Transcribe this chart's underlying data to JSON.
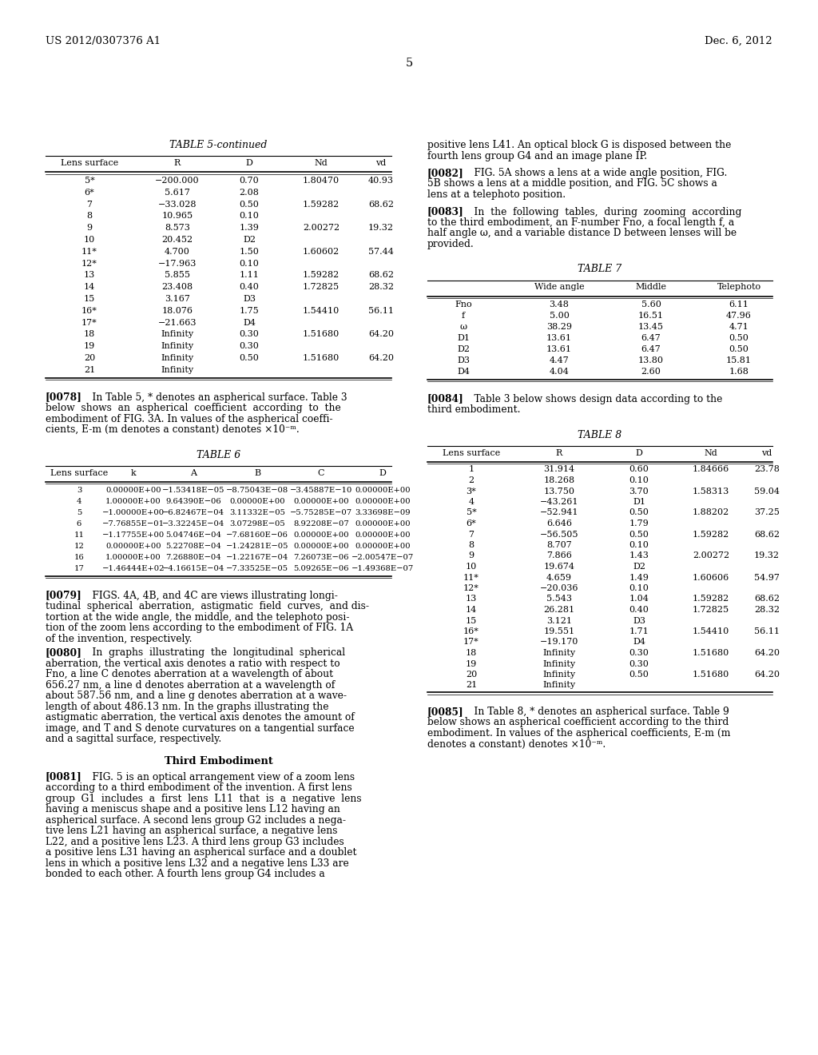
{
  "header_left": "US 2012/0307376 A1",
  "header_right": "Dec. 6, 2012",
  "page_number": "5",
  "background_color": "#ffffff",
  "text_color": "#000000",
  "table5c_title": "TABLE 5-continued",
  "table5c_rows": [
    [
      "5*",
      "−200.000",
      "0.70",
      "1.80470",
      "40.93"
    ],
    [
      "6*",
      "5.617",
      "2.08",
      "",
      ""
    ],
    [
      "7",
      "−33.028",
      "0.50",
      "1.59282",
      "68.62"
    ],
    [
      "8",
      "10.965",
      "0.10",
      "",
      ""
    ],
    [
      "9",
      "8.573",
      "1.39",
      "2.00272",
      "19.32"
    ],
    [
      "10",
      "20.452",
      "D2",
      "",
      ""
    ],
    [
      "11*",
      "4.700",
      "1.50",
      "1.60602",
      "57.44"
    ],
    [
      "12*",
      "−17.963",
      "0.10",
      "",
      ""
    ],
    [
      "13",
      "5.855",
      "1.11",
      "1.59282",
      "68.62"
    ],
    [
      "14",
      "23.408",
      "0.40",
      "1.72825",
      "28.32"
    ],
    [
      "15",
      "3.167",
      "D3",
      "",
      ""
    ],
    [
      "16*",
      "18.076",
      "1.75",
      "1.54410",
      "56.11"
    ],
    [
      "17*",
      "−21.663",
      "D4",
      "",
      ""
    ],
    [
      "18",
      "Infinity",
      "0.30",
      "1.51680",
      "64.20"
    ],
    [
      "19",
      "Infinity",
      "0.30",
      "",
      ""
    ],
    [
      "20",
      "Infinity",
      "0.50",
      "1.51680",
      "64.20"
    ],
    [
      "21",
      "Infinity",
      "",
      "",
      ""
    ]
  ],
  "table6_title": "TABLE 6",
  "table6_rows": [
    [
      "3",
      "0.00000E+00",
      "−1.53418E−05",
      "−8.75043E−08",
      "−3.45887E−10",
      "0.00000E+00"
    ],
    [
      "4",
      "1.00000E+00",
      "9.64390E−06",
      "0.00000E+00",
      "0.00000E+00",
      "0.00000E+00"
    ],
    [
      "5",
      "−1.00000E+00",
      "−6.82467E−04",
      "3.11332E−05",
      "−5.75285E−07",
      "3.33698E−09"
    ],
    [
      "6",
      "−7.76855E−01",
      "−3.32245E−04",
      "3.07298E−05",
      "8.92208E−07",
      "0.00000E+00"
    ],
    [
      "11",
      "−1.17755E+00",
      "5.04746E−04",
      "−7.68160E−06",
      "0.00000E+00",
      "0.00000E+00"
    ],
    [
      "12",
      "0.00000E+00",
      "5.22708E−04",
      "−1.24281E−05",
      "0.00000E+00",
      "0.00000E+00"
    ],
    [
      "16",
      "1.00000E+00",
      "7.26880E−04",
      "−1.22167E−04",
      "7.26073E−06",
      "−2.00547E−07"
    ],
    [
      "17",
      "−1.46444E+02",
      "−4.16615E−04",
      "−7.33525E−05",
      "5.09265E−06",
      "−1.49368E−07"
    ]
  ],
  "table7_title": "TABLE 7",
  "table7_rows": [
    [
      "Fno",
      "3.48",
      "5.60",
      "6.11"
    ],
    [
      "f",
      "5.00",
      "16.51",
      "47.96"
    ],
    [
      "ω",
      "38.29",
      "13.45",
      "4.71"
    ],
    [
      "D1",
      "13.61",
      "6.47",
      "0.50"
    ],
    [
      "D2",
      "13.61",
      "6.47",
      "0.50"
    ],
    [
      "D3",
      "4.47",
      "13.80",
      "15.81"
    ],
    [
      "D4",
      "4.04",
      "2.60",
      "1.68"
    ]
  ],
  "table8_title": "TABLE 8",
  "table8_rows": [
    [
      "1",
      "31.914",
      "0.60",
      "1.84666",
      "23.78"
    ],
    [
      "2",
      "18.268",
      "0.10",
      "",
      ""
    ],
    [
      "3*",
      "13.750",
      "3.70",
      "1.58313",
      "59.04"
    ],
    [
      "4",
      "−43.261",
      "D1",
      "",
      ""
    ],
    [
      "5*",
      "−52.941",
      "0.50",
      "1.88202",
      "37.25"
    ],
    [
      "6*",
      "6.646",
      "1.79",
      "",
      ""
    ],
    [
      "7",
      "−56.505",
      "0.50",
      "1.59282",
      "68.62"
    ],
    [
      "8",
      "8.707",
      "0.10",
      "",
      ""
    ],
    [
      "9",
      "7.866",
      "1.43",
      "2.00272",
      "19.32"
    ],
    [
      "10",
      "19.674",
      "D2",
      "",
      ""
    ],
    [
      "11*",
      "4.659",
      "1.49",
      "1.60606",
      "54.97"
    ],
    [
      "12*",
      "−20.036",
      "0.10",
      "",
      ""
    ],
    [
      "13",
      "5.543",
      "1.04",
      "1.59282",
      "68.62"
    ],
    [
      "14",
      "26.281",
      "0.40",
      "1.72825",
      "28.32"
    ],
    [
      "15",
      "3.121",
      "D3",
      "",
      ""
    ],
    [
      "16*",
      "19.551",
      "1.71",
      "1.54410",
      "56.11"
    ],
    [
      "17*",
      "−19.170",
      "D4",
      "",
      ""
    ],
    [
      "18",
      "Infinity",
      "0.30",
      "1.51680",
      "64.20"
    ],
    [
      "19",
      "Infinity",
      "0.30",
      "",
      ""
    ],
    [
      "20",
      "Infinity",
      "0.50",
      "1.51680",
      "64.20"
    ],
    [
      "21",
      "Infinity",
      "",
      "",
      ""
    ]
  ]
}
